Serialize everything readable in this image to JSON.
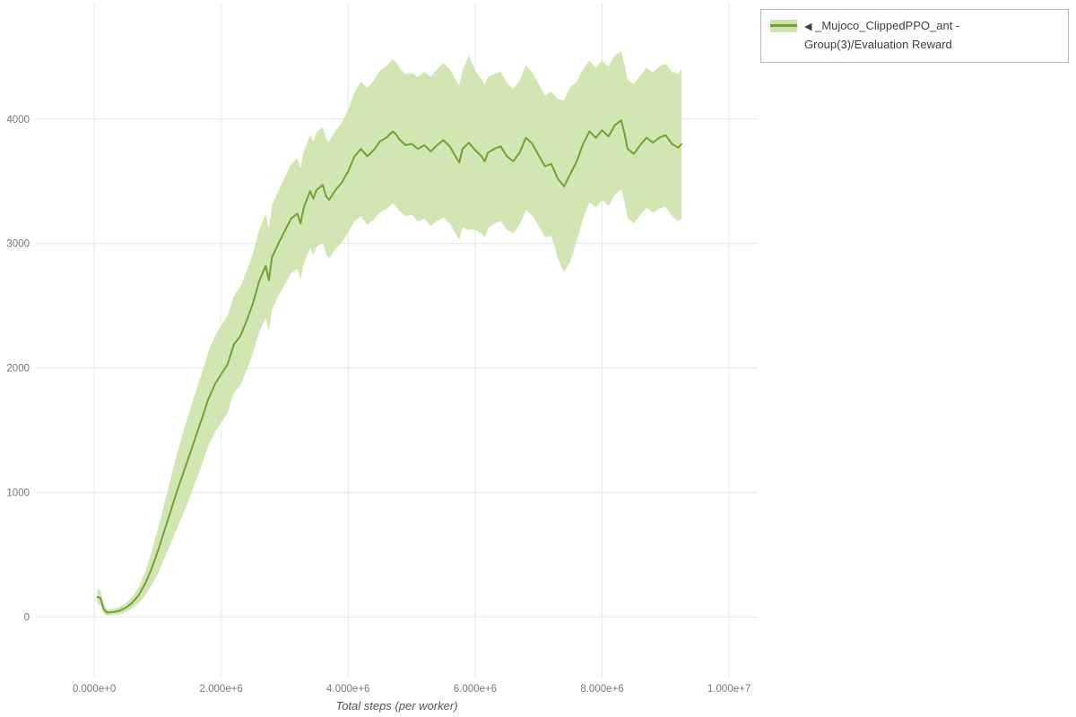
{
  "page": {
    "background": "#ffffff"
  },
  "colors": {
    "grid": "#e6e6e6",
    "tick_text": "#777777",
    "axis_label": "#555555",
    "legend_border": "#b5b5b5"
  },
  "legend": {
    "items": [
      {
        "marker": "◀",
        "label": "_Mujoco_ClippedPPO_ant - Group(3)/Evaluation Reward",
        "line_color": "#6fa233",
        "band_color": "#cde3ab"
      }
    ]
  },
  "chart_data": {
    "type": "line",
    "title": "",
    "xlabel": "Total steps (per worker)",
    "ylabel": "",
    "xlim": [
      -920000,
      10450000
    ],
    "ylim": [
      -480,
      4920
    ],
    "grid": true,
    "legend_position": "top-right",
    "x_ticks": [
      {
        "value": 0,
        "label": "0.000e+0"
      },
      {
        "value": 2000000,
        "label": "2.000e+6"
      },
      {
        "value": 4000000,
        "label": "4.000e+6"
      },
      {
        "value": 6000000,
        "label": "6.000e+6"
      },
      {
        "value": 8000000,
        "label": "8.000e+6"
      },
      {
        "value": 10000000,
        "label": "1.000e+7"
      }
    ],
    "y_ticks": [
      {
        "value": 0,
        "label": "0"
      },
      {
        "value": 1000,
        "label": "1000"
      },
      {
        "value": 2000,
        "label": "2000"
      },
      {
        "value": 3000,
        "label": "3000"
      },
      {
        "value": 4000,
        "label": "4000"
      }
    ],
    "series": [
      {
        "name": "_Mujoco_ClippedPPO_ant - Group(3)/Evaluation Reward",
        "line_color": "#6fa233",
        "band_color": "#cde3ab",
        "points_format": [
          "x_steps",
          "mean_reward",
          "band_half_width"
        ],
        "points": [
          [
            50000,
            160,
            60
          ],
          [
            100000,
            150,
            60
          ],
          [
            150000,
            60,
            35
          ],
          [
            200000,
            35,
            25
          ],
          [
            300000,
            40,
            25
          ],
          [
            400000,
            50,
            30
          ],
          [
            500000,
            75,
            35
          ],
          [
            600000,
            115,
            45
          ],
          [
            700000,
            175,
            65
          ],
          [
            800000,
            265,
            95
          ],
          [
            900000,
            385,
            135
          ],
          [
            1000000,
            525,
            180
          ],
          [
            1100000,
            685,
            220
          ],
          [
            1200000,
            845,
            260
          ],
          [
            1300000,
            1005,
            300
          ],
          [
            1400000,
            1155,
            330
          ],
          [
            1500000,
            1300,
            350
          ],
          [
            1600000,
            1450,
            360
          ],
          [
            1700000,
            1600,
            370
          ],
          [
            1800000,
            1755,
            380
          ],
          [
            1900000,
            1870,
            385
          ],
          [
            2000000,
            1950,
            390
          ],
          [
            2100000,
            2030,
            390
          ],
          [
            2200000,
            2190,
            390
          ],
          [
            2300000,
            2255,
            395
          ],
          [
            2400000,
            2380,
            400
          ],
          [
            2500000,
            2520,
            400
          ],
          [
            2600000,
            2700,
            410
          ],
          [
            2700000,
            2820,
            415
          ],
          [
            2750000,
            2705,
            415
          ],
          [
            2800000,
            2890,
            420
          ],
          [
            2900000,
            3000,
            420
          ],
          [
            3000000,
            3100,
            430
          ],
          [
            3100000,
            3200,
            440
          ],
          [
            3200000,
            3240,
            445
          ],
          [
            3250000,
            3160,
            445
          ],
          [
            3300000,
            3290,
            450
          ],
          [
            3400000,
            3420,
            455
          ],
          [
            3450000,
            3360,
            455
          ],
          [
            3500000,
            3430,
            460
          ],
          [
            3600000,
            3470,
            465
          ],
          [
            3650000,
            3380,
            465
          ],
          [
            3700000,
            3350,
            470
          ],
          [
            3800000,
            3430,
            475
          ],
          [
            3900000,
            3490,
            480
          ],
          [
            4000000,
            3580,
            490
          ],
          [
            4100000,
            3700,
            520
          ],
          [
            4200000,
            3760,
            540
          ],
          [
            4300000,
            3700,
            550
          ],
          [
            4400000,
            3750,
            560
          ],
          [
            4500000,
            3820,
            570
          ],
          [
            4600000,
            3850,
            575
          ],
          [
            4700000,
            3900,
            580
          ],
          [
            4750000,
            3880,
            580
          ],
          [
            4800000,
            3840,
            575
          ],
          [
            4900000,
            3790,
            570
          ],
          [
            5000000,
            3800,
            570
          ],
          [
            5100000,
            3760,
            580
          ],
          [
            5200000,
            3790,
            590
          ],
          [
            5300000,
            3740,
            600
          ],
          [
            5400000,
            3790,
            610
          ],
          [
            5500000,
            3830,
            620
          ],
          [
            5600000,
            3780,
            620
          ],
          [
            5700000,
            3690,
            620
          ],
          [
            5750000,
            3650,
            620
          ],
          [
            5800000,
            3760,
            630
          ],
          [
            5900000,
            3810,
            700
          ],
          [
            6000000,
            3750,
            640
          ],
          [
            6100000,
            3700,
            620
          ],
          [
            6150000,
            3660,
            610
          ],
          [
            6200000,
            3730,
            610
          ],
          [
            6300000,
            3760,
            600
          ],
          [
            6400000,
            3780,
            600
          ],
          [
            6500000,
            3700,
            590
          ],
          [
            6600000,
            3660,
            580
          ],
          [
            6700000,
            3730,
            580
          ],
          [
            6800000,
            3850,
            580
          ],
          [
            6900000,
            3800,
            575
          ],
          [
            7000000,
            3710,
            570
          ],
          [
            7100000,
            3620,
            570
          ],
          [
            7200000,
            3640,
            580
          ],
          [
            7300000,
            3520,
            640
          ],
          [
            7400000,
            3460,
            690
          ],
          [
            7500000,
            3560,
            700
          ],
          [
            7600000,
            3660,
            640
          ],
          [
            7700000,
            3800,
            600
          ],
          [
            7800000,
            3900,
            570
          ],
          [
            7900000,
            3850,
            560
          ],
          [
            8000000,
            3910,
            560
          ],
          [
            8100000,
            3860,
            560
          ],
          [
            8200000,
            3950,
            560
          ],
          [
            8300000,
            3990,
            555
          ],
          [
            8350000,
            3890,
            555
          ],
          [
            8400000,
            3760,
            555
          ],
          [
            8500000,
            3720,
            560
          ],
          [
            8600000,
            3790,
            560
          ],
          [
            8700000,
            3850,
            560
          ],
          [
            8800000,
            3810,
            565
          ],
          [
            8900000,
            3850,
            570
          ],
          [
            9000000,
            3870,
            575
          ],
          [
            9100000,
            3800,
            580
          ],
          [
            9200000,
            3770,
            590
          ],
          [
            9250000,
            3800,
            600
          ]
        ]
      }
    ]
  }
}
